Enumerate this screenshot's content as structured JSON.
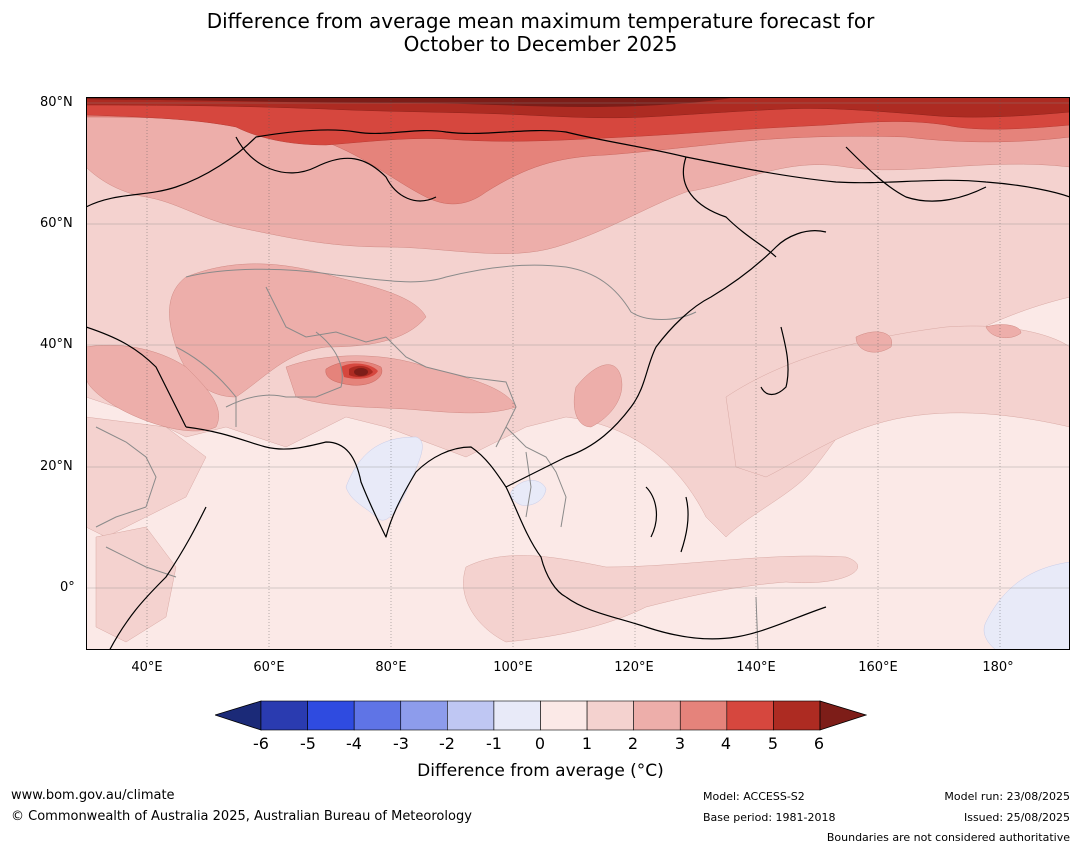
{
  "title_line1": "Difference from average mean maximum temperature forecast for",
  "title_line2": "October to December 2025",
  "map": {
    "lat_labels": [
      "80°N",
      "60°N",
      "40°N",
      "20°N",
      "0°"
    ],
    "lon_labels": [
      "40°E",
      "60°E",
      "80°E",
      "100°E",
      "120°E",
      "140°E",
      "160°E",
      "180°"
    ],
    "colors": {
      "ocean_base": "#fbe9e7",
      "anomaly_1_2": "#f4d2cf",
      "anomaly_2_3": "#edaeaa",
      "anomaly_3_4": "#e5837b",
      "anomaly_4_5": "#d6473e",
      "anomaly_5_6": "#ad2b22",
      "anomaly_gt6": "#7d1d18",
      "anomaly_neg_0_1": "#e8eaf8",
      "coastline": "#000000",
      "borders": "#8a8a8a"
    }
  },
  "colorbar": {
    "ticks": [
      "-6",
      "-5",
      "-4",
      "-3",
      "-2",
      "-1",
      "0",
      "1",
      "2",
      "3",
      "4",
      "5",
      "6"
    ],
    "colors": [
      "#1b2a78",
      "#2a3bb0",
      "#2f4be0",
      "#5f74e6",
      "#8d9cec",
      "#bfc7f3",
      "#e8eaf8",
      "#fbe9e7",
      "#f4d2cf",
      "#edaeaa",
      "#e5837b",
      "#d6473e",
      "#ad2b22",
      "#7d1d18"
    ],
    "label": "Difference from average (°C)"
  },
  "footer": {
    "url": "www.bom.gov.au/climate",
    "copyright": "© Commonwealth of Australia 2025, Australian Bureau of Meteorology",
    "model": "Model: ACCESS-S2",
    "base_period": "Base period: 1981-2018",
    "model_run": "Model run: 23/08/2025",
    "issued": "Issued: 25/08/2025",
    "disclaimer": "Boundaries are not considered authoritative"
  }
}
